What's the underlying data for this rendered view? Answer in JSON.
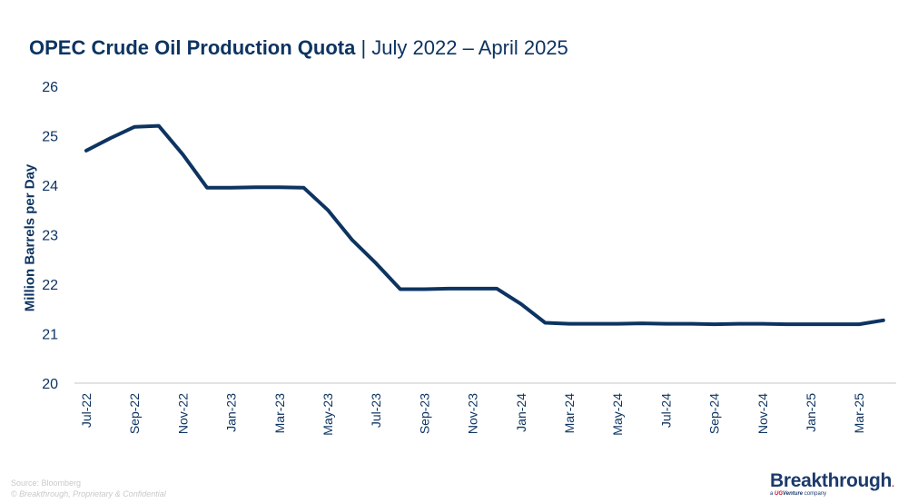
{
  "header": {
    "title_bold": "OPEC Crude Oil Production Quota",
    "title_rest": " | July 2022 – April 2025"
  },
  "footer": {
    "source": "Source: Bloomberg",
    "confidential": "© Breakthrough, Proprietary & Confidential"
  },
  "logo": {
    "brand": "Breakthrough",
    "brand_mark": ".",
    "sub_prefix": "a ",
    "sub_ug": "UG",
    "sub_venture": "Venture",
    "sub_suffix": " company"
  },
  "colors": {
    "line": "#0d3461",
    "text": "#0d3461",
    "axis": "#d9d9d9",
    "footer": "#c9c9c9",
    "logo_accent": "#c8102e"
  },
  "chart_data": {
    "type": "line",
    "title": "OPEC Crude Oil Production Quota | July 2022 – April 2025",
    "xlabel": "",
    "ylabel": "Million Barrels per Day",
    "ylim": [
      20,
      26
    ],
    "yticks": [
      20,
      21,
      22,
      23,
      24,
      25,
      26
    ],
    "grid": false,
    "legend": null,
    "x_tick_labels": [
      "Jul-22",
      "Sep-22",
      "Nov-22",
      "Jan-23",
      "Mar-23",
      "May-23",
      "Jul-23",
      "Sep-23",
      "Nov-23",
      "Jan-24",
      "Mar-24",
      "May-24",
      "Jul-24",
      "Sep-24",
      "Nov-24",
      "Jan-25",
      "Mar-25"
    ],
    "x": [
      "Jul-22",
      "Aug-22",
      "Sep-22",
      "Oct-22",
      "Nov-22",
      "Dec-22",
      "Jan-23",
      "Feb-23",
      "Mar-23",
      "Apr-23",
      "May-23",
      "Jun-23",
      "Jul-23",
      "Aug-23",
      "Sep-23",
      "Oct-23",
      "Nov-23",
      "Dec-23",
      "Jan-24",
      "Feb-24",
      "Mar-24",
      "Apr-24",
      "May-24",
      "Jun-24",
      "Jul-24",
      "Aug-24",
      "Sep-24",
      "Oct-24",
      "Nov-24",
      "Dec-24",
      "Jan-25",
      "Feb-25",
      "Mar-25",
      "Apr-25"
    ],
    "series": [
      {
        "name": "OPEC Crude Oil Production Quota",
        "values": [
          24.7,
          24.95,
          25.18,
          25.2,
          24.62,
          23.95,
          23.95,
          23.96,
          23.96,
          23.95,
          23.5,
          22.9,
          22.42,
          21.9,
          21.9,
          21.91,
          21.91,
          21.91,
          21.6,
          21.22,
          21.2,
          21.2,
          21.2,
          21.21,
          21.2,
          21.2,
          21.19,
          21.2,
          21.2,
          21.19,
          21.19,
          21.19,
          21.19,
          21.27
        ]
      }
    ]
  }
}
